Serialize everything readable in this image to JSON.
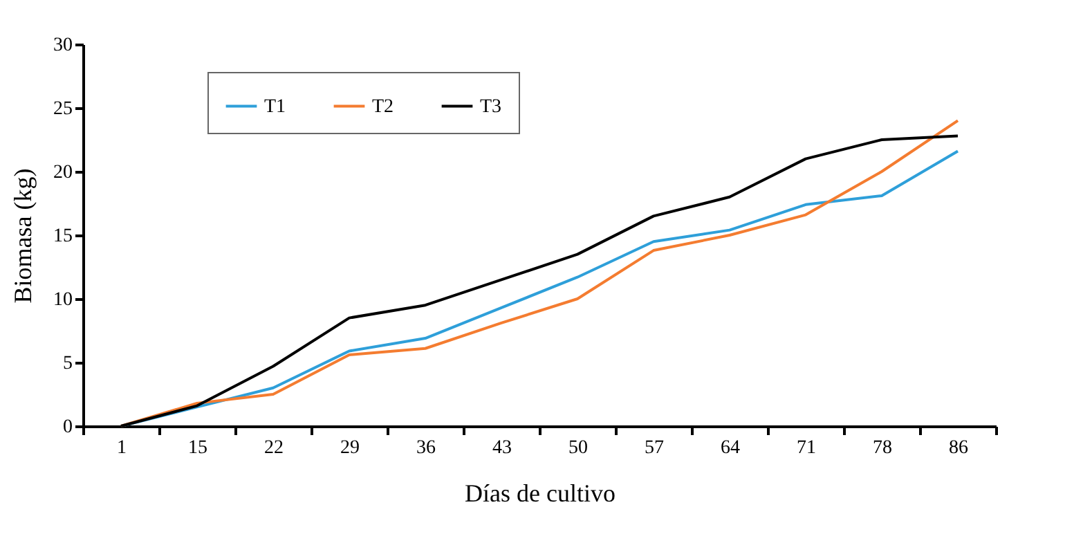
{
  "chart_data": {
    "type": "line",
    "xlabel": "Días de cultivo",
    "ylabel": "Biomasa (kg)",
    "categories": [
      "1",
      "15",
      "22",
      "29",
      "36",
      "43",
      "50",
      "57",
      "64",
      "71",
      "78",
      "86"
    ],
    "series": [
      {
        "name": "T1",
        "color": "#2e9fd9",
        "values": [
          0,
          1.5,
          3,
          5.9,
          6.9,
          9.3,
          11.7,
          14.5,
          15.4,
          17.4,
          18.1,
          21.6
        ]
      },
      {
        "name": "T2",
        "color": "#f47c30",
        "values": [
          0,
          1.8,
          2.5,
          5.6,
          6.1,
          8.1,
          10.0,
          13.8,
          15.0,
          16.6,
          20.0,
          24.0
        ]
      },
      {
        "name": "T3",
        "color": "#000000",
        "values": [
          0,
          1.6,
          4.7,
          8.5,
          9.5,
          11.5,
          13.5,
          16.5,
          18.0,
          21.0,
          22.5,
          22.8
        ]
      }
    ],
    "ylim": [
      0,
      30
    ],
    "yticks": [
      0,
      5,
      10,
      15,
      20,
      25,
      30
    ],
    "grid": false,
    "legend": "top left",
    "marker": "none",
    "line_style": "solid"
  }
}
